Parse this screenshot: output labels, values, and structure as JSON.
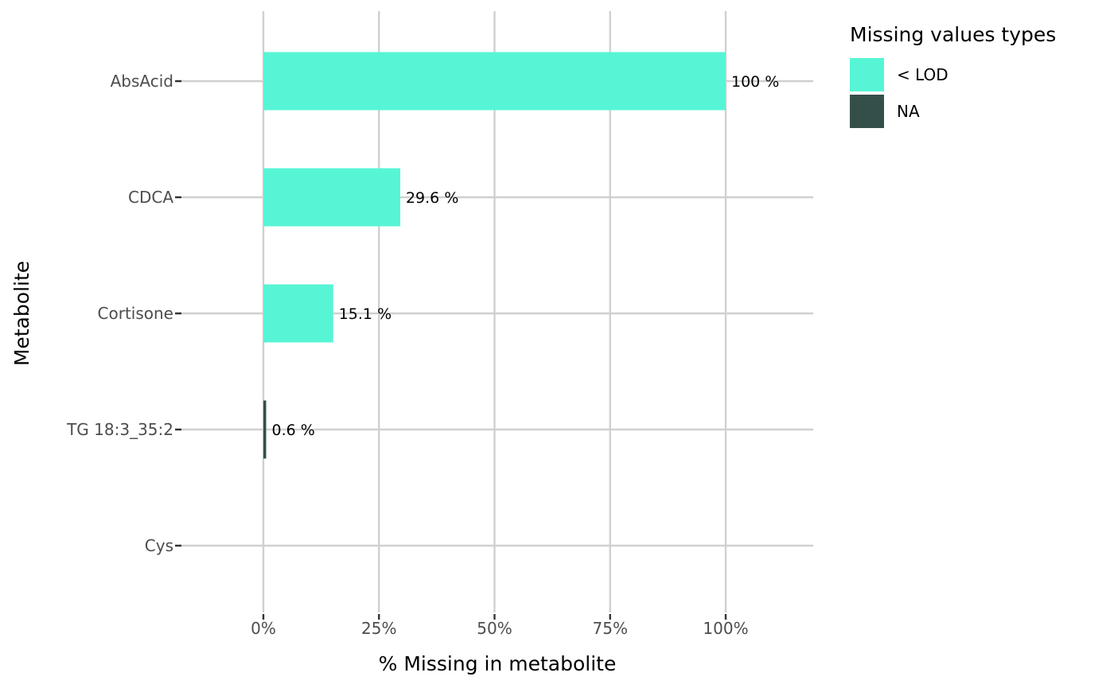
{
  "chart_data": {
    "type": "bar",
    "orientation": "horizontal",
    "stacked": true,
    "categories": [
      "AbsAcid",
      "CDCA",
      "Cortisone",
      "TG 18:3_35:2",
      "Cys"
    ],
    "series": [
      {
        "name": "< LOD",
        "color": "#56F5D5",
        "values": [
          100,
          29.6,
          15.1,
          0,
          0
        ]
      },
      {
        "name": "NA",
        "color": "#344F49",
        "values": [
          0,
          0,
          0,
          0.6,
          0
        ]
      }
    ],
    "data_labels": [
      "100 %",
      "29.6 %",
      "15.1 %",
      "0.6 %",
      ""
    ],
    "xlabel": "% Missing in metabolite",
    "ylabel": "Metabolite",
    "x_ticks": [
      0,
      25,
      50,
      75,
      100
    ],
    "x_tick_labels": [
      "0%",
      "25%",
      "50%",
      "75%",
      "100%"
    ],
    "xlim": [
      0,
      119
    ],
    "grid": true,
    "legend": {
      "title": "Missing values types",
      "position": "right",
      "entries": [
        "< LOD",
        "NA"
      ]
    }
  }
}
